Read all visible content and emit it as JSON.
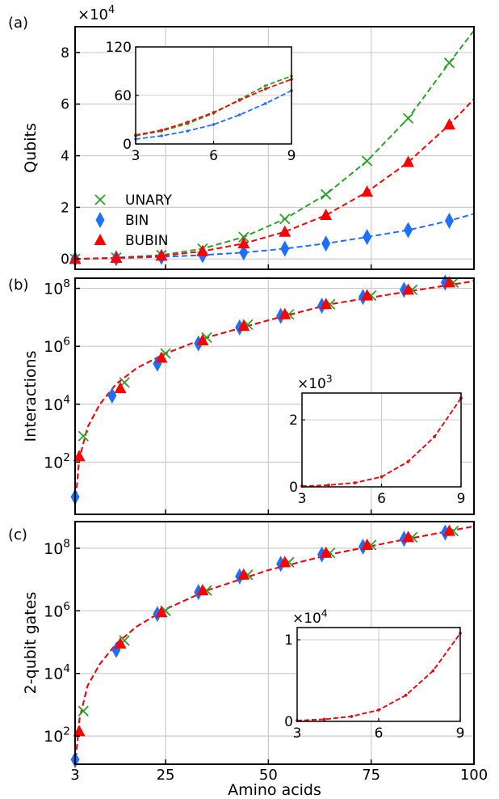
{
  "figure": {
    "xlabel": "Amino acids",
    "x_ticks": [
      "3",
      "25",
      "50",
      "75",
      "100"
    ]
  },
  "legend": {
    "items": [
      {
        "label": "UNARY",
        "color": "#2ca02c",
        "marker": "x-marker"
      },
      {
        "label": "BIN",
        "color": "#1f6fff",
        "marker": "diamond-marker"
      },
      {
        "label": "BUBIN",
        "color": "#ff0000",
        "marker": "triangle-marker"
      }
    ]
  },
  "chart_data": [
    {
      "panel": "(a)",
      "type": "line",
      "ylabel": "Qubits",
      "yscale": "linear",
      "y_multiplier": "×10",
      "y_multiplier_exp": "4",
      "y_ticks": [
        "0",
        "2",
        "4",
        "6",
        "8"
      ],
      "xlim": [
        3,
        100
      ],
      "ylim": [
        -0.4,
        9.0
      ],
      "series": [
        {
          "name": "UNARY",
          "color": "#2ca02c",
          "marker": "x",
          "x": [
            3,
            13,
            24,
            34,
            44,
            54,
            64,
            74,
            84,
            94
          ],
          "y": [
            0.0,
            0.05,
            0.15,
            0.4,
            0.85,
            1.55,
            2.5,
            3.8,
            5.45,
            7.6
          ]
        },
        {
          "name": "BIN",
          "color": "#1f6fff",
          "marker": "diamond",
          "x": [
            3,
            13,
            24,
            34,
            44,
            54,
            64,
            74,
            84,
            94
          ],
          "y": [
            0.0,
            0.03,
            0.08,
            0.15,
            0.25,
            0.4,
            0.6,
            0.85,
            1.12,
            1.48
          ]
        },
        {
          "name": "BUBIN",
          "color": "#ff0000",
          "marker": "triangle",
          "x": [
            3,
            13,
            24,
            34,
            44,
            54,
            64,
            74,
            84,
            94
          ],
          "y": [
            0.0,
            0.04,
            0.12,
            0.3,
            0.6,
            1.05,
            1.7,
            2.6,
            3.75,
            5.2
          ]
        }
      ],
      "curves": [
        {
          "name": "UNARY",
          "color": "#2ca02c",
          "x": [
            3,
            13,
            24,
            34,
            44,
            54,
            64,
            74,
            84,
            94,
            100
          ],
          "y": [
            0.0,
            0.05,
            0.15,
            0.4,
            0.85,
            1.55,
            2.5,
            3.8,
            5.45,
            7.6,
            8.85
          ]
        },
        {
          "name": "BIN",
          "color": "#1f6fff",
          "x": [
            3,
            13,
            24,
            34,
            44,
            54,
            64,
            74,
            84,
            94,
            100
          ],
          "y": [
            0.0,
            0.03,
            0.08,
            0.15,
            0.25,
            0.4,
            0.6,
            0.85,
            1.12,
            1.48,
            1.75
          ]
        },
        {
          "name": "BUBIN",
          "color": "#ff0000",
          "x": [
            3,
            13,
            24,
            34,
            44,
            54,
            64,
            74,
            84,
            94,
            100
          ],
          "y": [
            0.0,
            0.04,
            0.12,
            0.3,
            0.6,
            1.05,
            1.7,
            2.6,
            3.75,
            5.2,
            6.2
          ]
        }
      ],
      "inset": {
        "x_ticks": [
          "3",
          "6",
          "9"
        ],
        "y_ticks": [
          "0",
          "60",
          "120"
        ],
        "xlim": [
          3,
          9
        ],
        "ylim": [
          0,
          120
        ],
        "curves": [
          {
            "name": "UNARY",
            "color": "#2ca02c",
            "x": [
              3,
              4,
              5,
              6,
              7,
              8,
              9
            ],
            "y": [
              10,
              16,
              25,
              38,
              55,
              72,
              84
            ]
          },
          {
            "name": "BIN",
            "color": "#1f6fff",
            "x": [
              3,
              4,
              5,
              6,
              7,
              8,
              9
            ],
            "y": [
              6,
              10,
              16,
              24,
              36,
              50,
              66
            ]
          },
          {
            "name": "BUBIN",
            "color": "#ff0000",
            "x": [
              3,
              4,
              5,
              6,
              7,
              8,
              9
            ],
            "y": [
              11,
              17,
              27,
              39,
              54,
              68,
              80
            ]
          }
        ]
      }
    },
    {
      "panel": "(b)",
      "type": "line",
      "ylabel": "Interactions",
      "yscale": "log",
      "y_ticks": [
        {
          "base": "10",
          "exp": "2",
          "value": 2
        },
        {
          "base": "10",
          "exp": "4",
          "value": 4
        },
        {
          "base": "10",
          "exp": "6",
          "value": 6
        },
        {
          "base": "10",
          "exp": "8",
          "value": 8
        }
      ],
      "xlim": [
        3,
        100
      ],
      "ylim_log10": [
        0.2,
        8.35
      ],
      "series": [
        {
          "name": "UNARY",
          "color": "#2ca02c",
          "marker": "x",
          "x": [
            5,
            15,
            25,
            35,
            45,
            55,
            65,
            75,
            85,
            95
          ],
          "y_log10": [
            2.9,
            4.75,
            5.75,
            6.3,
            6.75,
            7.1,
            7.45,
            7.75,
            7.95,
            8.2
          ]
        },
        {
          "name": "BIN",
          "color": "#1f6fff",
          "marker": "diamond",
          "x": [
            3,
            12,
            23,
            33,
            43,
            53,
            63,
            73,
            83,
            93
          ],
          "y_log10": [
            0.8,
            4.3,
            5.4,
            6.1,
            6.65,
            7.05,
            7.4,
            7.7,
            7.95,
            8.2
          ]
        },
        {
          "name": "BUBIN",
          "color": "#ff0000",
          "marker": "triangle",
          "x": [
            4,
            14,
            24,
            34,
            44,
            54,
            64,
            74,
            84,
            94
          ],
          "y_log10": [
            2.2,
            4.55,
            5.6,
            6.2,
            6.7,
            7.1,
            7.45,
            7.75,
            7.95,
            8.2
          ]
        }
      ],
      "curves": [
        {
          "name": "BIN",
          "color": "#1f6fff",
          "x": [
            3,
            4,
            6,
            9,
            13,
            18,
            25,
            35,
            50,
            65,
            80,
            100
          ],
          "y_log10": [
            0.5,
            2.1,
            3.2,
            4.0,
            4.7,
            5.25,
            5.75,
            6.3,
            6.9,
            7.45,
            7.8,
            8.25
          ]
        },
        {
          "name": "BUBIN",
          "color": "#ff0000",
          "x": [
            3,
            4,
            6,
            9,
            13,
            18,
            25,
            35,
            50,
            65,
            80,
            100
          ],
          "y_log10": [
            0.5,
            2.1,
            3.2,
            4.0,
            4.7,
            5.25,
            5.75,
            6.3,
            6.9,
            7.45,
            7.8,
            8.25
          ]
        }
      ],
      "inset": {
        "x_ticks": [
          "3",
          "6",
          "9"
        ],
        "y_ticks": [
          "0",
          "2"
        ],
        "y_multiplier": "×10",
        "y_multiplier_exp": "3",
        "xlim": [
          3,
          9
        ],
        "ylim": [
          0,
          2.8
        ],
        "curves": [
          {
            "name": "BIN",
            "color": "#1f6fff",
            "x": [
              3,
              4,
              5,
              6,
              7,
              8,
              9
            ],
            "y": [
              0.02,
              0.05,
              0.12,
              0.3,
              0.75,
              1.5,
              2.65
            ]
          },
          {
            "name": "BUBIN",
            "color": "#ff0000",
            "x": [
              3,
              4,
              5,
              6,
              7,
              8,
              9
            ],
            "y": [
              0.02,
              0.05,
              0.12,
              0.3,
              0.75,
              1.5,
              2.65
            ]
          }
        ]
      }
    },
    {
      "panel": "(c)",
      "type": "line",
      "ylabel": "2-qubit gates",
      "yscale": "log",
      "y_ticks": [
        {
          "base": "10",
          "exp": "2",
          "value": 2
        },
        {
          "base": "10",
          "exp": "4",
          "value": 4
        },
        {
          "base": "10",
          "exp": "6",
          "value": 6
        },
        {
          "base": "10",
          "exp": "8",
          "value": 8
        }
      ],
      "xlim": [
        3,
        100
      ],
      "ylim_log10": [
        1.1,
        8.85
      ],
      "series": [
        {
          "name": "UNARY",
          "color": "#2ca02c",
          "marker": "x",
          "x": [
            5,
            15,
            25,
            35,
            45,
            55,
            65,
            75,
            85,
            95
          ],
          "y_log10": [
            2.8,
            5.05,
            6.0,
            6.65,
            7.15,
            7.55,
            7.85,
            8.1,
            8.35,
            8.55
          ]
        },
        {
          "name": "BIN",
          "color": "#1f6fff",
          "marker": "diamond",
          "x": [
            3,
            13,
            23,
            33,
            43,
            53,
            63,
            73,
            83,
            93
          ],
          "y_log10": [
            1.25,
            4.75,
            5.9,
            6.6,
            7.1,
            7.5,
            7.8,
            8.05,
            8.3,
            8.5
          ]
        },
        {
          "name": "BUBIN",
          "color": "#ff0000",
          "marker": "triangle",
          "x": [
            4,
            14,
            24,
            34,
            44,
            54,
            64,
            74,
            84,
            94
          ],
          "y_log10": [
            2.15,
            4.95,
            5.95,
            6.65,
            7.15,
            7.55,
            7.85,
            8.1,
            8.35,
            8.55
          ]
        }
      ],
      "curves": [
        {
          "name": "BIN",
          "color": "#1f6fff",
          "x": [
            3,
            4,
            6,
            9,
            13,
            18,
            25,
            35,
            50,
            65,
            80,
            100
          ],
          "y_log10": [
            1.0,
            2.5,
            3.6,
            4.3,
            4.95,
            5.5,
            6.05,
            6.65,
            7.3,
            7.8,
            8.2,
            8.7
          ]
        },
        {
          "name": "BUBIN",
          "color": "#ff0000",
          "x": [
            3,
            4,
            6,
            9,
            13,
            18,
            25,
            35,
            50,
            65,
            80,
            100
          ],
          "y_log10": [
            1.0,
            2.5,
            3.6,
            4.3,
            4.95,
            5.5,
            6.05,
            6.65,
            7.3,
            7.8,
            8.2,
            8.7
          ]
        }
      ],
      "inset": {
        "x_ticks": [
          "3",
          "6",
          "9"
        ],
        "y_ticks": [
          "0",
          "1"
        ],
        "y_multiplier": "×10",
        "y_multiplier_exp": "4",
        "xlim": [
          3,
          9
        ],
        "ylim": [
          0,
          1.15
        ],
        "curves": [
          {
            "name": "BIN",
            "color": "#1f6fff",
            "x": [
              3,
              4,
              5,
              6,
              7,
              8,
              9
            ],
            "y": [
              0.01,
              0.025,
              0.06,
              0.14,
              0.32,
              0.62,
              1.08
            ]
          },
          {
            "name": "BUBIN",
            "color": "#ff0000",
            "x": [
              3,
              4,
              5,
              6,
              7,
              8,
              9
            ],
            "y": [
              0.01,
              0.025,
              0.06,
              0.14,
              0.32,
              0.62,
              1.08
            ]
          }
        ]
      }
    }
  ]
}
